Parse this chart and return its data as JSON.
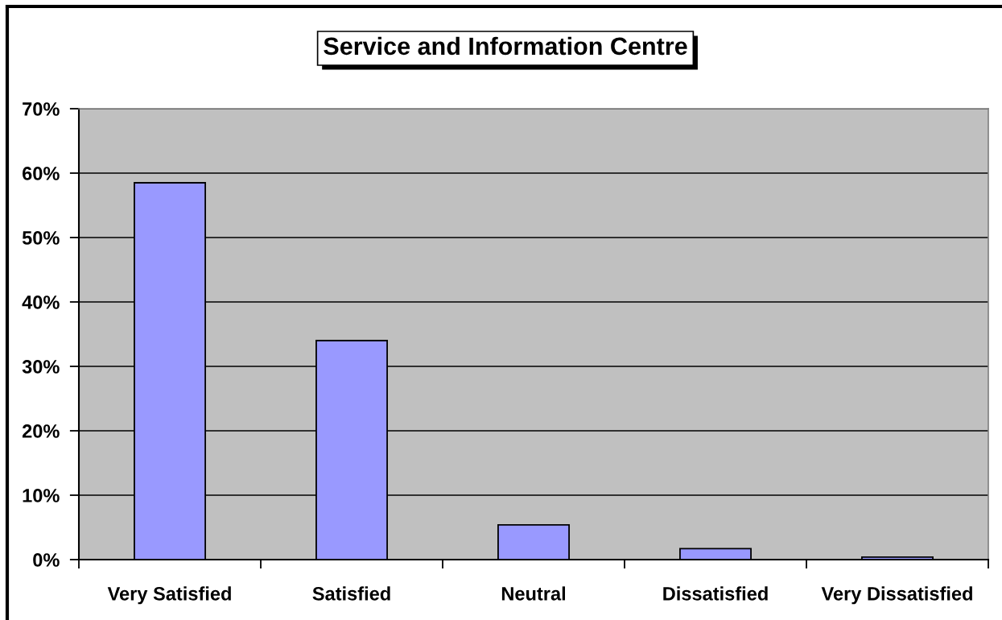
{
  "chart_data": {
    "type": "bar",
    "title": "Service and Information Centre",
    "categories": [
      "Very Satisfied",
      "Satisfied",
      "Neutral",
      "Dissatisfied",
      "Very Dissatisfied"
    ],
    "values": [
      58.5,
      34.0,
      5.4,
      1.7,
      0.4
    ],
    "color": "#9999ff",
    "ylim": [
      0,
      70
    ],
    "yticks": [
      {
        "value": 0,
        "label": "0%"
      },
      {
        "value": 10,
        "label": "10%"
      },
      {
        "value": 20,
        "label": "20%"
      },
      {
        "value": 30,
        "label": "30%"
      },
      {
        "value": 40,
        "label": "40%"
      },
      {
        "value": 50,
        "label": "50%"
      },
      {
        "value": 60,
        "label": "60%"
      },
      {
        "value": 70,
        "label": "70%"
      }
    ],
    "grid": "y"
  }
}
